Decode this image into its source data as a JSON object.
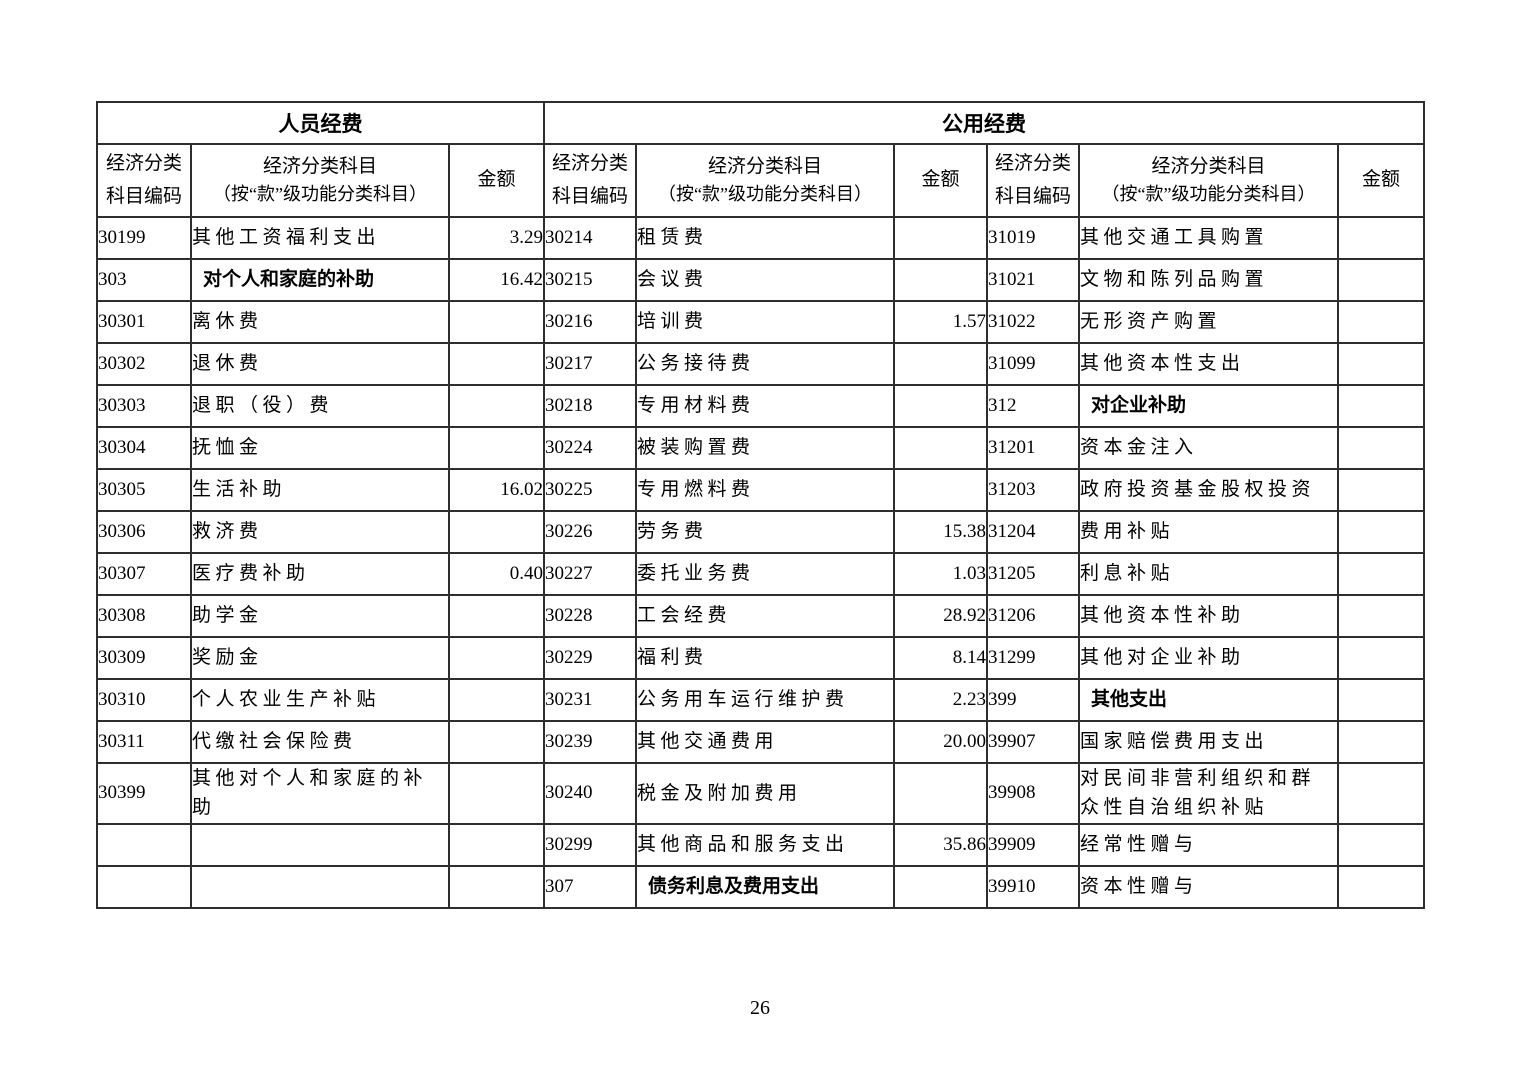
{
  "page": {
    "number": "26"
  },
  "table": {
    "group_headers": [
      {
        "label": "人员经费"
      },
      {
        "label": "公用经费"
      }
    ],
    "column_headers": {
      "code": "经济分类科目编码",
      "subject_line1": "经济分类科目",
      "subject_line2": "（按“款”级功能分类科目）",
      "amount": "金额"
    },
    "rows": [
      {
        "left": {
          "code": "30199",
          "subject": "其他工资福利支出",
          "amount": "3.29",
          "bold": false
        },
        "mid": {
          "code": "30214",
          "subject": "租赁费",
          "amount": "",
          "bold": false
        },
        "right": {
          "code": "31019",
          "subject": "其他交通工具购置",
          "amount": "",
          "bold": false
        }
      },
      {
        "left": {
          "code": "303",
          "subject": "对个人和家庭的补助",
          "amount": "16.42",
          "bold": true
        },
        "mid": {
          "code": "30215",
          "subject": "会议费",
          "amount": "",
          "bold": false
        },
        "right": {
          "code": "31021",
          "subject": "文物和陈列品购置",
          "amount": "",
          "bold": false
        }
      },
      {
        "left": {
          "code": "30301",
          "subject": "离休费",
          "amount": "",
          "bold": false
        },
        "mid": {
          "code": "30216",
          "subject": "培训费",
          "amount": "1.57",
          "bold": false
        },
        "right": {
          "code": "31022",
          "subject": "无形资产购置",
          "amount": "",
          "bold": false
        }
      },
      {
        "left": {
          "code": "30302",
          "subject": "退休费",
          "amount": "",
          "bold": false
        },
        "mid": {
          "code": "30217",
          "subject": "公务接待费",
          "amount": "",
          "bold": false
        },
        "right": {
          "code": "31099",
          "subject": "其他资本性支出",
          "amount": "",
          "bold": false
        }
      },
      {
        "left": {
          "code": "30303",
          "subject": "退职（役）费",
          "amount": "",
          "bold": false
        },
        "mid": {
          "code": "30218",
          "subject": "专用材料费",
          "amount": "",
          "bold": false
        },
        "right": {
          "code": "312",
          "subject": "对企业补助",
          "amount": "",
          "bold": true
        }
      },
      {
        "left": {
          "code": "30304",
          "subject": "抚恤金",
          "amount": "",
          "bold": false
        },
        "mid": {
          "code": "30224",
          "subject": "被装购置费",
          "amount": "",
          "bold": false
        },
        "right": {
          "code": "31201",
          "subject": "资本金注入",
          "amount": "",
          "bold": false
        }
      },
      {
        "left": {
          "code": "30305",
          "subject": "生活补助",
          "amount": "16.02",
          "bold": false
        },
        "mid": {
          "code": "30225",
          "subject": "专用燃料费",
          "amount": "",
          "bold": false
        },
        "right": {
          "code": "31203",
          "subject": "政府投资基金股权投资",
          "amount": "",
          "bold": false
        }
      },
      {
        "left": {
          "code": "30306",
          "subject": "救济费",
          "amount": "",
          "bold": false
        },
        "mid": {
          "code": "30226",
          "subject": "劳务费",
          "amount": "15.38",
          "bold": false
        },
        "right": {
          "code": "31204",
          "subject": "费用补贴",
          "amount": "",
          "bold": false
        }
      },
      {
        "left": {
          "code": "30307",
          "subject": "医疗费补助",
          "amount": "0.40",
          "bold": false
        },
        "mid": {
          "code": "30227",
          "subject": "委托业务费",
          "amount": "1.03",
          "bold": false
        },
        "right": {
          "code": "31205",
          "subject": "利息补贴",
          "amount": "",
          "bold": false
        }
      },
      {
        "left": {
          "code": "30308",
          "subject": "助学金",
          "amount": "",
          "bold": false
        },
        "mid": {
          "code": "30228",
          "subject": "工会经费",
          "amount": "28.92",
          "bold": false
        },
        "right": {
          "code": "31206",
          "subject": "其他资本性补助",
          "amount": "",
          "bold": false
        }
      },
      {
        "left": {
          "code": "30309",
          "subject": "奖励金",
          "amount": "",
          "bold": false
        },
        "mid": {
          "code": "30229",
          "subject": "福利费",
          "amount": "8.14",
          "bold": false
        },
        "right": {
          "code": "31299",
          "subject": "其他对企业补助",
          "amount": "",
          "bold": false
        }
      },
      {
        "left": {
          "code": "30310",
          "subject": "个人农业生产补贴",
          "amount": "",
          "bold": false
        },
        "mid": {
          "code": "30231",
          "subject": "公务用车运行维护费",
          "amount": "2.23",
          "bold": false
        },
        "right": {
          "code": "399",
          "subject": "其他支出",
          "amount": "",
          "bold": true
        }
      },
      {
        "left": {
          "code": "30311",
          "subject": "代缴社会保险费",
          "amount": "",
          "bold": false
        },
        "mid": {
          "code": "30239",
          "subject": "其他交通费用",
          "amount": "20.00",
          "bold": false
        },
        "right": {
          "code": "39907",
          "subject": "国家赔偿费用支出",
          "amount": "",
          "bold": false
        }
      },
      {
        "left": {
          "code": "30399",
          "subject": "其他对个人和家庭的补助",
          "amount": "",
          "bold": false
        },
        "mid": {
          "code": "30240",
          "subject": "税金及附加费用",
          "amount": "",
          "bold": false
        },
        "right": {
          "code": "39908",
          "subject": "对民间非营利组织和群众性自治组织补贴",
          "amount": "",
          "bold": false
        }
      },
      {
        "left": {
          "code": "",
          "subject": "",
          "amount": "",
          "bold": false
        },
        "mid": {
          "code": "30299",
          "subject": "其他商品和服务支出",
          "amount": "35.86",
          "bold": false
        },
        "right": {
          "code": "39909",
          "subject": "经常性赠与",
          "amount": "",
          "bold": false
        }
      },
      {
        "left": {
          "code": "",
          "subject": "",
          "amount": "",
          "bold": false
        },
        "mid": {
          "code": "307",
          "subject": "债务利息及费用支出",
          "amount": "",
          "bold": true
        },
        "right": {
          "code": "39910",
          "subject": "资本性赠与",
          "amount": "",
          "bold": false
        }
      }
    ]
  }
}
